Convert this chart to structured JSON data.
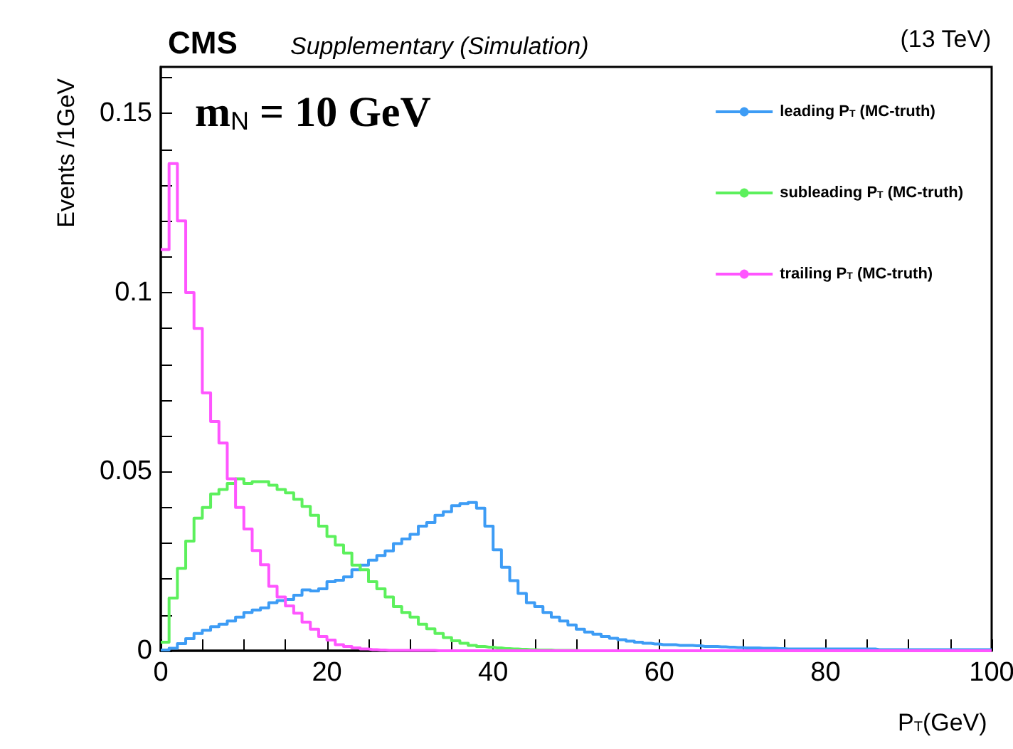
{
  "chart_data": {
    "type": "histogram",
    "title": "CMS",
    "subtitle": "Supplementary (Simulation)",
    "xlabel": "P$_{T}$(GeV)",
    "ylabel": "Events /1GeV",
    "annotations": [
      "(13 TeV)",
      "m$_{N}$ = 10 GeV"
    ],
    "bins": [
      0,
      1,
      2,
      3,
      4,
      5,
      6,
      7,
      8,
      9,
      10,
      11,
      12,
      13,
      14,
      15,
      16,
      17,
      18,
      19,
      20,
      21,
      22,
      23,
      24,
      25,
      26,
      27,
      28,
      29,
      30,
      31,
      32,
      33,
      34,
      35,
      36,
      37,
      38,
      39,
      40,
      41,
      42,
      43,
      44,
      45,
      46,
      47,
      48,
      49,
      50,
      51,
      52,
      53,
      54,
      55,
      56,
      57,
      58,
      59,
      60,
      61,
      62,
      63,
      64,
      65,
      66,
      67,
      68,
      69,
      70,
      71,
      72,
      73,
      74,
      75,
      76,
      77,
      78,
      79,
      80,
      81,
      82,
      83,
      84,
      85,
      86,
      87,
      88,
      89,
      90,
      91,
      92,
      93,
      94,
      95,
      96,
      97,
      98,
      99,
      100
    ],
    "series": [
      {
        "name": "leading P$_{T}$ (MC-truth)",
        "color": "#3d9cf5",
        "values": [
          0.0002,
          0.0007,
          0.002,
          0.0034,
          0.0048,
          0.0057,
          0.0067,
          0.0074,
          0.0083,
          0.0094,
          0.0107,
          0.0114,
          0.012,
          0.0134,
          0.014,
          0.0143,
          0.0155,
          0.017,
          0.0167,
          0.0173,
          0.0193,
          0.0197,
          0.0206,
          0.0226,
          0.0239,
          0.0253,
          0.0266,
          0.0279,
          0.0299,
          0.0312,
          0.0325,
          0.0348,
          0.0358,
          0.0378,
          0.0388,
          0.0405,
          0.0411,
          0.0414,
          0.0398,
          0.0348,
          0.0282,
          0.0233,
          0.0196,
          0.016,
          0.0134,
          0.0123,
          0.0107,
          0.0094,
          0.0083,
          0.0072,
          0.006,
          0.0052,
          0.0046,
          0.004,
          0.0035,
          0.0031,
          0.0027,
          0.0024,
          0.0021,
          0.0019,
          0.0017,
          0.0017,
          0.0015,
          0.0015,
          0.0014,
          0.0012,
          0.0012,
          0.0011,
          0.001,
          0.0009,
          0.0008,
          0.0008,
          0.0007,
          0.0007,
          0.0006,
          0.0005,
          0.0005,
          0.0005,
          0.0005,
          0.0005,
          0.0005,
          0.0005,
          0.0005,
          0.0005,
          0.0005,
          0.0005,
          0.0003,
          0.0003,
          0.0003,
          0.0003,
          0.0003,
          0.0003,
          0.0003,
          0.0003,
          0.0003,
          0.0003,
          0.0003,
          0.0003,
          0.0003,
          0.0003
        ]
      },
      {
        "name": "subleading P$_{T}$ (MC-truth)",
        "color": "#5cf05c",
        "values": [
          0.0024,
          0.0147,
          0.023,
          0.0306,
          0.037,
          0.04,
          0.0438,
          0.045,
          0.0467,
          0.048,
          0.0467,
          0.0472,
          0.0472,
          0.0462,
          0.045,
          0.0441,
          0.0423,
          0.0403,
          0.0378,
          0.0348,
          0.0319,
          0.0295,
          0.0273,
          0.0239,
          0.0226,
          0.0193,
          0.0173,
          0.015,
          0.0123,
          0.0107,
          0.0094,
          0.0074,
          0.0061,
          0.0048,
          0.0037,
          0.0028,
          0.0021,
          0.0015,
          0.0012,
          0.001,
          0.0008,
          0.0006,
          0.0005,
          0.0004,
          0.0003,
          0.0002,
          0.0002,
          0.0001,
          0.0001,
          0.0001,
          0,
          0,
          0,
          0,
          0,
          0,
          0,
          0,
          0,
          0,
          0,
          0,
          0,
          0,
          0,
          0,
          0,
          0,
          0,
          0,
          0,
          0,
          0,
          0,
          0,
          0,
          0,
          0,
          0,
          0,
          0,
          0,
          0,
          0,
          0,
          0,
          0,
          0,
          0,
          0,
          0,
          0,
          0,
          0,
          0,
          0,
          0,
          0,
          0,
          0
        ]
      },
      {
        "name": "trailing P$_{T}$ (MC-truth)",
        "color": "#ff55ff",
        "values": [
          0.112,
          0.136,
          0.12,
          0.1,
          0.09,
          0.072,
          0.064,
          0.058,
          0.048,
          0.04,
          0.034,
          0.028,
          0.024,
          0.018,
          0.015,
          0.0125,
          0.0105,
          0.008,
          0.006,
          0.004,
          0.003,
          0.0017,
          0.0012,
          0.0008,
          0.0005,
          0.0003,
          0.0002,
          0.0001,
          0.0001,
          0.0001,
          0.0001,
          0.0001,
          0.0001,
          0,
          0,
          0,
          0,
          0,
          0,
          0,
          0,
          0,
          0,
          0,
          0,
          0,
          0,
          0,
          0,
          0,
          0,
          0,
          0,
          0,
          0,
          0,
          0,
          0,
          0,
          0,
          0,
          0,
          0,
          0,
          0,
          0,
          0,
          0,
          0,
          0,
          0,
          0,
          0,
          0,
          0,
          0,
          0,
          0,
          0,
          0,
          0,
          0,
          0,
          0,
          0,
          0,
          0,
          0,
          0,
          0,
          0,
          0,
          0,
          0,
          0,
          0,
          0,
          0,
          0,
          0
        ]
      }
    ],
    "xlim": [
      0,
      100
    ],
    "ylim": [
      0,
      0.163
    ],
    "xticks": [
      0,
      {
        "value": 5,
        "label": null
      },
      {
        "value": 10,
        "label": null
      },
      {
        "value": 15,
        "label": null
      },
      20,
      {
        "value": 25,
        "label": null
      },
      {
        "value": 30,
        "label": null
      },
      {
        "value": 35,
        "label": null
      },
      40,
      {
        "value": 45,
        "label": null
      },
      {
        "value": 50,
        "label": null
      },
      {
        "value": 55,
        "label": null
      },
      60,
      {
        "value": 65,
        "label": null
      },
      {
        "value": 70,
        "label": null
      },
      {
        "value": 75,
        "label": null
      },
      80,
      {
        "value": 85,
        "label": null
      },
      {
        "value": 90,
        "label": null
      },
      {
        "value": 95,
        "label": null
      },
      100
    ],
    "yticks": [
      0,
      {
        "value": 0.01,
        "label": null
      },
      {
        "value": 0.02,
        "label": null
      },
      {
        "value": 0.03,
        "label": null
      },
      {
        "value": 0.04,
        "label": null
      },
      0.05,
      {
        "value": 0.06,
        "label": null
      },
      {
        "value": 0.07,
        "label": null
      },
      {
        "value": 0.08,
        "label": null
      },
      {
        "value": 0.09,
        "label": null
      },
      0.1,
      {
        "value": 0.11,
        "label": null
      },
      {
        "value": 0.12,
        "label": null
      },
      {
        "value": 0.13,
        "label": null
      },
      {
        "value": 0.14,
        "label": null
      },
      0.15,
      {
        "value": 0.16,
        "label": null
      }
    ],
    "legend": "top right",
    "marker": "circle"
  }
}
